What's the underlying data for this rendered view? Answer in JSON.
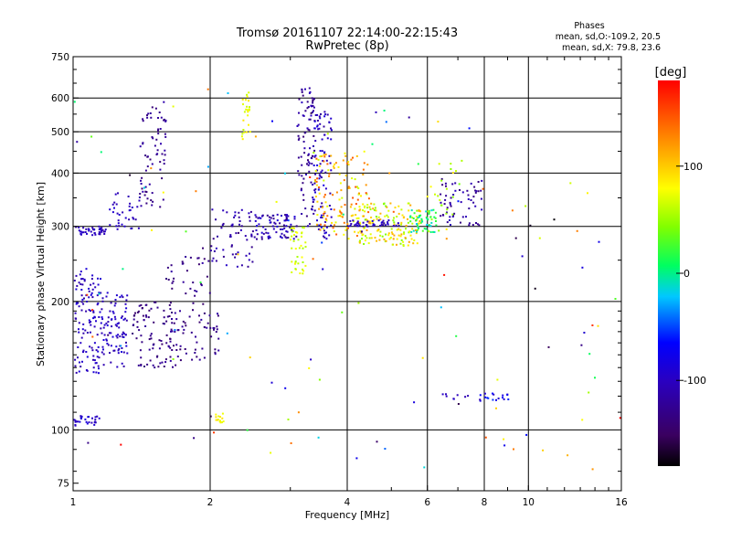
{
  "chart_data": {
    "type": "scatter",
    "title_line1": "Tromsø 20161107 22:14:00-22:15:43",
    "title_line2": "RwPretec (8p)",
    "stats": {
      "heading": "Phases",
      "line_o": "mean, sd,O:-109.2, 20.5",
      "line_x": "mean, sd,X: 79.8, 23.6"
    },
    "xlabel": "Frequency [MHz]",
    "ylabel": "Stationary phase Virtual Height [km]",
    "x_scale": "log",
    "y_scale": "log",
    "xlim": [
      1,
      16
    ],
    "ylim": [
      72,
      750
    ],
    "xticks": [
      {
        "value": 1,
        "label": "1"
      },
      {
        "value": 2,
        "label": "2"
      },
      {
        "value": 4,
        "label": "4"
      },
      {
        "value": 6,
        "label": "6"
      },
      {
        "value": 8,
        "label": "8"
      },
      {
        "value": 10,
        "label": "10"
      },
      {
        "value": 16,
        "label": "16"
      }
    ],
    "x_gridlines": [
      2,
      4,
      6,
      8,
      10
    ],
    "yticks": [
      {
        "value": 75,
        "label": "75"
      },
      {
        "value": 100,
        "label": "100"
      },
      {
        "value": 200,
        "label": "200"
      },
      {
        "value": 300,
        "label": "300"
      },
      {
        "value": 400,
        "label": "400"
      },
      {
        "value": 500,
        "label": "500"
      },
      {
        "value": 600,
        "label": "600"
      },
      {
        "value": 750,
        "label": "750"
      }
    ],
    "y_gridlines": [
      100,
      200,
      300,
      400,
      500,
      600
    ],
    "colorbar": {
      "title": "[deg]",
      "range": [
        -180,
        180
      ],
      "ticks": [
        {
          "value": 100,
          "label": "100"
        },
        {
          "value": 0,
          "label": "0"
        },
        {
          "value": -100,
          "label": "-100"
        }
      ]
    },
    "grid": true,
    "clusters": [
      {
        "f": [
          1.0,
          1.18
        ],
        "h": [
          285,
          300
        ],
        "phase": [
          -115,
          -90
        ],
        "n": 45
      },
      {
        "f": [
          1.18,
          1.4
        ],
        "h": [
          295,
          360
        ],
        "phase": [
          -115,
          -90
        ],
        "n": 35
      },
      {
        "f": [
          1.4,
          1.6
        ],
        "h": [
          330,
          600
        ],
        "phase": [
          -140,
          -110
        ],
        "n": 70
      },
      {
        "f": [
          1.0,
          1.15
        ],
        "h": [
          135,
          240
        ],
        "phase": [
          -115,
          -85
        ],
        "n": 120
      },
      {
        "f": [
          1.15,
          1.32
        ],
        "h": [
          140,
          210
        ],
        "phase": [
          -115,
          -85
        ],
        "n": 90
      },
      {
        "f": [
          1.0,
          1.15
        ],
        "h": [
          102,
          108
        ],
        "phase": [
          -105,
          -85
        ],
        "n": 30
      },
      {
        "f": [
          1.35,
          1.7
        ],
        "h": [
          140,
          200
        ],
        "phase": [
          -145,
          -120
        ],
        "n": 90
      },
      {
        "f": [
          1.6,
          2.0
        ],
        "h": [
          145,
          260
        ],
        "phase": [
          -145,
          -115
        ],
        "n": 80
      },
      {
        "f": [
          2.0,
          2.5
        ],
        "h": [
          240,
          330
        ],
        "phase": [
          -130,
          -95
        ],
        "n": 60
      },
      {
        "f": [
          2.0,
          2.1
        ],
        "h": [
          150,
          200
        ],
        "phase": [
          -140,
          -110
        ],
        "n": 15
      },
      {
        "f": [
          2.35,
          2.45
        ],
        "h": [
          470,
          620
        ],
        "phase": [
          60,
          90
        ],
        "n": 25
      },
      {
        "f": [
          2.05,
          2.15
        ],
        "h": [
          104,
          110
        ],
        "phase": [
          70,
          95
        ],
        "n": 15
      },
      {
        "f": [
          2.5,
          3.1
        ],
        "h": [
          280,
          320
        ],
        "phase": [
          -130,
          -85
        ],
        "n": 80
      },
      {
        "f": [
          3.0,
          3.25
        ],
        "h": [
          230,
          300
        ],
        "phase": [
          50,
          80
        ],
        "n": 40
      },
      {
        "f": [
          3.1,
          3.4
        ],
        "h": [
          300,
          640
        ],
        "phase": [
          -140,
          -100
        ],
        "n": 90
      },
      {
        "f": [
          3.35,
          3.7
        ],
        "h": [
          280,
          560
        ],
        "phase": [
          -120,
          -80
        ],
        "n": 90
      },
      {
        "f": [
          3.4,
          4.5
        ],
        "h": [
          280,
          450
        ],
        "phase": [
          60,
          150
        ],
        "n": 140
      },
      {
        "f": [
          4.2,
          5.8
        ],
        "h": [
          270,
          340
        ],
        "phase": [
          40,
          120
        ],
        "n": 150
      },
      {
        "f": [
          4.0,
          5.2
        ],
        "h": [
          300,
          310
        ],
        "phase": [
          -110,
          -85
        ],
        "n": 40
      },
      {
        "f": [
          5.5,
          6.3
        ],
        "h": [
          290,
          330
        ],
        "phase": [
          -20,
          30
        ],
        "n": 50
      },
      {
        "f": [
          6.4,
          7.9
        ],
        "h": [
          300,
          390
        ],
        "phase": [
          -140,
          -100
        ],
        "n": 60
      },
      {
        "f": [
          6.0,
          7.2
        ],
        "h": [
          290,
          430
        ],
        "phase": [
          40,
          90
        ],
        "n": 25
      },
      {
        "f": [
          7.8,
          9.2
        ],
        "h": [
          117,
          122
        ],
        "phase": [
          -110,
          -50
        ],
        "n": 18
      },
      {
        "f": [
          6.4,
          7.4
        ],
        "h": [
          118,
          122
        ],
        "phase": [
          -110,
          -90
        ],
        "n": 8
      },
      {
        "f": [
          1.0,
          16.0
        ],
        "h": [
          80,
          650
        ],
        "phase": [
          -180,
          180
        ],
        "n": 120
      }
    ]
  }
}
